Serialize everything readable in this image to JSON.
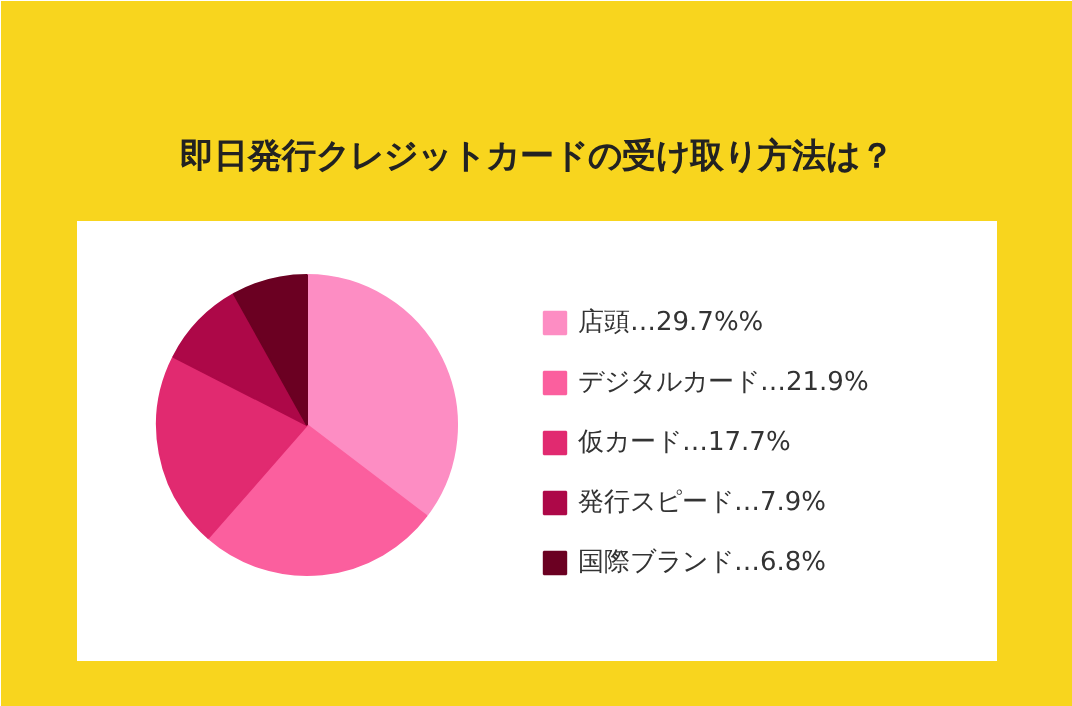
{
  "chart_data": {
    "type": "pie",
    "title": "即日発行クレジットカードの受け取り方法は？",
    "categories": [
      "店頭…29.7%%",
      "デジタルカード…21.9%",
      "仮カード…17.7%",
      "発行スピード…7.9%",
      "国際ブランド…6.8%"
    ],
    "values": [
      29.7,
      21.9,
      17.7,
      7.9,
      6.8
    ],
    "colors": [
      "#fd8dc3",
      "#fb5f9e",
      "#e12a70",
      "#ad0848",
      "#6b0022"
    ],
    "legend": "right"
  }
}
